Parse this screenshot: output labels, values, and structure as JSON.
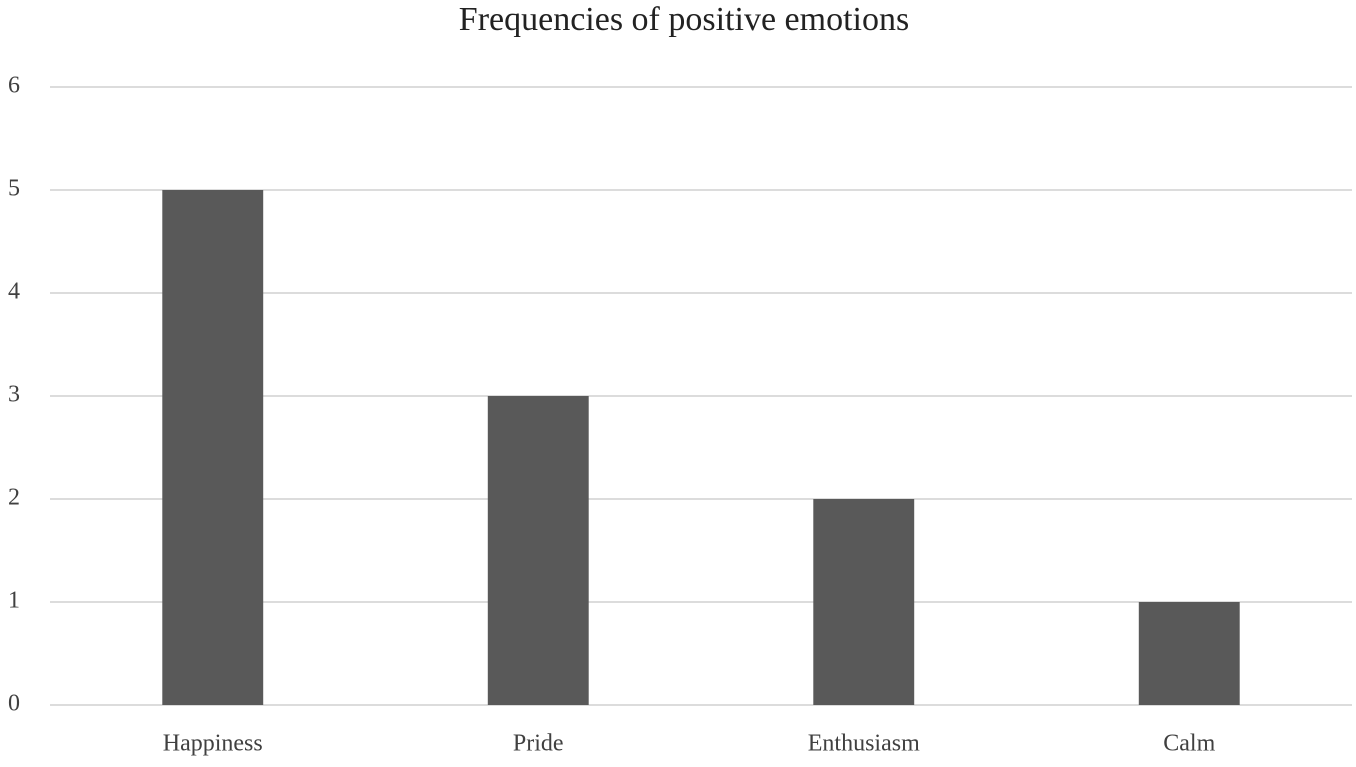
{
  "chart_data": {
    "type": "bar",
    "title": "Frequencies of positive emotions",
    "categories": [
      "Happiness",
      "Pride",
      "Enthusiasm",
      "Calm"
    ],
    "values": [
      5,
      3,
      2,
      1
    ],
    "color": "#595959",
    "ylim": [
      0,
      6
    ],
    "yticks": [
      0,
      1,
      2,
      3,
      4,
      5,
      6
    ],
    "grid": true
  }
}
